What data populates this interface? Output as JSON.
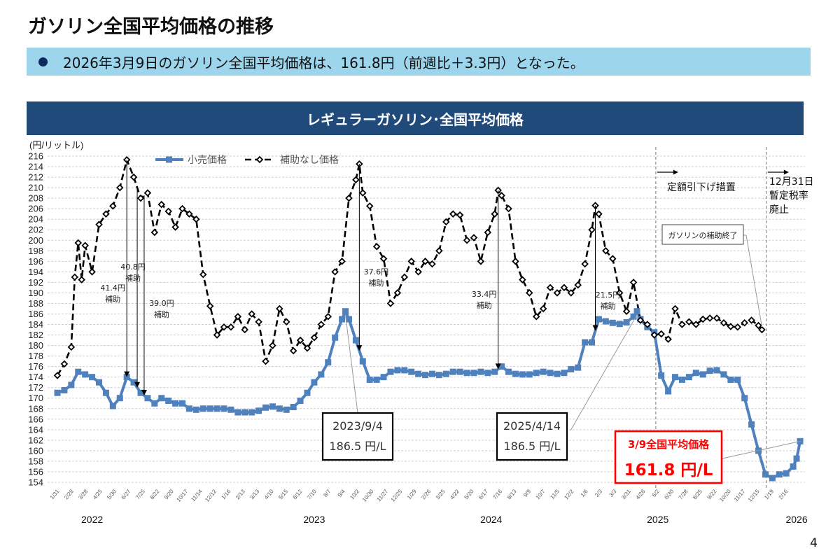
{
  "page": {
    "title": "ガソリン全国平均価格の推移",
    "summary": "2026年3月9日のガソリン全国平均価格は、161.8円（前週比＋3.3円）となった。",
    "chart_header": "レギュラーガソリン･全国平均価格",
    "page_number": "4"
  },
  "colors": {
    "banner": "#9DD6EC",
    "header": "#204A7A",
    "retail": "#4F81BD",
    "no_subsidy": "#000000",
    "highlight": "#FF0000"
  },
  "chart_data": {
    "type": "line",
    "ylabel": "(円/リットル)",
    "ylim": [
      154,
      216
    ],
    "y_ticks": [
      154,
      156,
      158,
      160,
      162,
      164,
      166,
      168,
      170,
      172,
      174,
      176,
      178,
      180,
      182,
      184,
      186,
      188,
      190,
      192,
      194,
      196,
      198,
      200,
      202,
      204,
      206,
      208,
      210,
      212,
      214,
      216
    ],
    "grid": true,
    "legend_position": "top",
    "x_tick_labels": [
      "1/31",
      "2/28",
      "3/28",
      "4/25",
      "5/30",
      "6/27",
      "7/25",
      "8/22",
      "9/20",
      "10/17",
      "11/14",
      "12/12",
      "1/16",
      "2/13",
      "3/13",
      "4/10",
      "5/15",
      "6/12",
      "7/10",
      "8/7",
      "9/4",
      "10/2",
      "10/30",
      "11/27",
      "12/25",
      "1/29",
      "2/26",
      "3/25",
      "4/22",
      "5/20",
      "6/17",
      "7/16",
      "8/13",
      "9/9",
      "10/7",
      "11/5",
      "12/2",
      "1/6",
      "2/3",
      "3/3",
      "3/31",
      "4/28",
      "6/2",
      "6/30",
      "7/28",
      "8/25",
      "9/22",
      "10/20",
      "11/17",
      "12/15",
      "1/19",
      "2/16"
    ],
    "year_labels": [
      {
        "label": "2022",
        "date": "2022-04-11"
      },
      {
        "label": "2023",
        "date": "2023-07-03"
      },
      {
        "label": "2024",
        "date": "2024-06-24"
      },
      {
        "label": "2025",
        "date": "2025-05-26"
      },
      {
        "label": "2026",
        "date": "2026-03-02"
      }
    ],
    "series": [
      {
        "name": "小売価格",
        "x": [
          "2022-01-31",
          "2022-02-14",
          "2022-02-28",
          "2022-03-14",
          "2022-03-28",
          "2022-04-11",
          "2022-04-25",
          "2022-05-09",
          "2022-05-23",
          "2022-06-06",
          "2022-06-20",
          "2022-07-04",
          "2022-07-18",
          "2022-08-01",
          "2022-08-15",
          "2022-08-29",
          "2022-09-12",
          "2022-09-26",
          "2022-10-10",
          "2022-10-24",
          "2022-11-07",
          "2022-11-21",
          "2022-12-05",
          "2022-12-19",
          "2023-01-02",
          "2023-01-16",
          "2023-01-30",
          "2023-02-13",
          "2023-02-27",
          "2023-03-13",
          "2023-03-27",
          "2023-04-10",
          "2023-04-24",
          "2023-05-08",
          "2023-05-22",
          "2023-06-05",
          "2023-06-19",
          "2023-07-03",
          "2023-07-17",
          "2023-07-31",
          "2023-08-14",
          "2023-08-28",
          "2023-09-04",
          "2023-09-11",
          "2023-09-25",
          "2023-10-09",
          "2023-10-23",
          "2023-11-06",
          "2023-11-20",
          "2023-12-04",
          "2023-12-18",
          "2024-01-01",
          "2024-01-15",
          "2024-01-29",
          "2024-02-12",
          "2024-02-26",
          "2024-03-11",
          "2024-03-25",
          "2024-04-08",
          "2024-04-22",
          "2024-05-06",
          "2024-05-20",
          "2024-06-03",
          "2024-06-17",
          "2024-07-01",
          "2024-07-15",
          "2024-07-29",
          "2024-08-12",
          "2024-08-26",
          "2024-09-09",
          "2024-09-23",
          "2024-10-07",
          "2024-10-21",
          "2024-11-04",
          "2024-11-18",
          "2024-12-02",
          "2024-12-16",
          "2024-12-30",
          "2025-01-13",
          "2025-01-27",
          "2025-02-10",
          "2025-02-24",
          "2025-03-10",
          "2025-03-24",
          "2025-04-07",
          "2025-04-14",
          "2025-04-21",
          "2025-05-05",
          "2025-05-19",
          "2025-06-02",
          "2025-06-16",
          "2025-06-30",
          "2025-07-14",
          "2025-07-28",
          "2025-08-11",
          "2025-08-25",
          "2025-09-08",
          "2025-09-22",
          "2025-10-06",
          "2025-10-20",
          "2025-11-03",
          "2025-11-17",
          "2025-12-01",
          "2025-12-15",
          "2025-12-29",
          "2026-01-12",
          "2026-01-26",
          "2026-02-09",
          "2026-02-23",
          "2026-03-02",
          "2026-03-09"
        ],
        "y": [
          171,
          171.5,
          172.5,
          175,
          174.5,
          174,
          173,
          171,
          168.5,
          170,
          174,
          173,
          171,
          170,
          169,
          170,
          169.5,
          169,
          169,
          168,
          167.8,
          168,
          168,
          168,
          168,
          167.8,
          167.3,
          167.3,
          167.3,
          167.6,
          168.2,
          168.4,
          168,
          167.8,
          168.3,
          169.5,
          171,
          173,
          174.5,
          176.8,
          181.5,
          185,
          186.5,
          185,
          181,
          177,
          173.5,
          173.5,
          174,
          175,
          175.3,
          175.3,
          175,
          174.6,
          174.4,
          174.6,
          174.4,
          174.6,
          175,
          175,
          174.8,
          174.8,
          175,
          174.8,
          175,
          176,
          175,
          174.6,
          174.5,
          174.5,
          174.8,
          175,
          174.8,
          174.6,
          174.8,
          175.5,
          175.8,
          180.6,
          180.6,
          185,
          184.6,
          184.3,
          184.1,
          184.4,
          185.5,
          186.5,
          185,
          183.5,
          182.5,
          174.3,
          171.3,
          174,
          173.5,
          174,
          174.8,
          174.5,
          175.2,
          175.3,
          174.5,
          173.5,
          173.5,
          170,
          165,
          160,
          155.5,
          154.8,
          155.5,
          155.7,
          157,
          158.5,
          161.8
        ]
      },
      {
        "name": "補助なし価格",
        "x": [
          "2022-01-31",
          "2022-02-14",
          "2022-02-28",
          "2022-03-07",
          "2022-03-14",
          "2022-03-21",
          "2022-03-28",
          "2022-04-11",
          "2022-04-25",
          "2022-05-09",
          "2022-05-23",
          "2022-06-06",
          "2022-06-20",
          "2022-07-04",
          "2022-07-18",
          "2022-08-01",
          "2022-08-15",
          "2022-08-29",
          "2022-09-12",
          "2022-09-26",
          "2022-10-10",
          "2022-10-24",
          "2022-11-07",
          "2022-11-21",
          "2022-12-05",
          "2022-12-19",
          "2023-01-02",
          "2023-01-16",
          "2023-01-30",
          "2023-02-13",
          "2023-02-27",
          "2023-03-13",
          "2023-03-27",
          "2023-04-10",
          "2023-04-24",
          "2023-05-08",
          "2023-05-22",
          "2023-06-05",
          "2023-06-19",
          "2023-07-03",
          "2023-07-17",
          "2023-07-31",
          "2023-08-14",
          "2023-08-28",
          "2023-09-11",
          "2023-09-25",
          "2023-10-02",
          "2023-10-09",
          "2023-10-23",
          "2023-11-06",
          "2023-11-20",
          "2023-12-04",
          "2023-12-18",
          "2024-01-01",
          "2024-01-15",
          "2024-01-29",
          "2024-02-12",
          "2024-02-26",
          "2024-03-11",
          "2024-03-25",
          "2024-04-08",
          "2024-04-22",
          "2024-05-06",
          "2024-05-20",
          "2024-06-03",
          "2024-06-17",
          "2024-07-01",
          "2024-07-08",
          "2024-07-15",
          "2024-07-29",
          "2024-08-12",
          "2024-08-26",
          "2024-09-09",
          "2024-09-23",
          "2024-10-07",
          "2024-10-21",
          "2024-11-04",
          "2024-11-18",
          "2024-12-02",
          "2024-12-16",
          "2024-12-30",
          "2025-01-13",
          "2025-01-20",
          "2025-01-27",
          "2025-02-10",
          "2025-02-24",
          "2025-03-10",
          "2025-03-24",
          "2025-04-07",
          "2025-04-21",
          "2025-05-05",
          "2025-05-19",
          "2025-06-02",
          "2025-06-16",
          "2025-06-30",
          "2025-07-14",
          "2025-07-28",
          "2025-08-11",
          "2025-08-25",
          "2025-09-08",
          "2025-09-22",
          "2025-10-06",
          "2025-10-20",
          "2025-11-03",
          "2025-11-17",
          "2025-12-01",
          "2025-12-15",
          "2025-12-22"
        ],
        "y": [
          174.3,
          176.5,
          179.7,
          193,
          199.5,
          192.5,
          199,
          194,
          203,
          205,
          206.5,
          210,
          215.3,
          212,
          208,
          209,
          201.5,
          206.8,
          205.5,
          202.5,
          206,
          205,
          204,
          193.5,
          187.5,
          182,
          183.5,
          183.5,
          185.5,
          183,
          186,
          184.5,
          177,
          180,
          187,
          184.5,
          179,
          181,
          179.5,
          181.5,
          184,
          185.5,
          194,
          196,
          208,
          211.5,
          214.5,
          209,
          206.5,
          198.8,
          196.5,
          188,
          190,
          193,
          196,
          194,
          196,
          195.5,
          198,
          203.5,
          205,
          204.8,
          200,
          200.5,
          196,
          201.5,
          205,
          209.5,
          208.5,
          206,
          196,
          192.5,
          190,
          185.5,
          187,
          191,
          190,
          191,
          190,
          191.5,
          195.5,
          202,
          206.6,
          205,
          198,
          196.5,
          190,
          186.5,
          192,
          184.8,
          184,
          182,
          182.2,
          181.2,
          187,
          184,
          184.5,
          184,
          185,
          185.2,
          185.2,
          184.3,
          183.6,
          183.5,
          184.3,
          184.8,
          183.8,
          183
        ]
      }
    ],
    "subsidy_annotations": [
      {
        "date": "2022-06-20",
        "label": "41.4円",
        "sub": "補助"
      },
      {
        "date": "2022-07-11",
        "label": "40.8円",
        "sub": "補助"
      },
      {
        "date": "2022-07-25",
        "label": "39.0円",
        "sub": "補助"
      },
      {
        "date": "2023-10-02",
        "label": "37.6円",
        "sub": "補助"
      },
      {
        "date": "2024-07-08",
        "label": "33.4円",
        "sub": "補助"
      },
      {
        "date": "2025-01-20",
        "label": "21.5円",
        "sub": "補助"
      }
    ],
    "callouts": [
      {
        "date": "2023-09-04",
        "line1": "2023/9/4",
        "line2": "186.5 円/L"
      },
      {
        "date": "2025-04-14",
        "line1": "2025/4/14",
        "line2": "186.5 円/L"
      }
    ],
    "highlight": {
      "date": "2026-03-09",
      "line1": "3/9全国平均価格",
      "line2": "161.8 円/L"
    },
    "events": [
      {
        "date": "2025-05-22",
        "label": "定額引下げ措置"
      },
      {
        "date": "2025-12-31",
        "label": "12月31日\n暫定税率\n廃止"
      }
    ],
    "subsidy_end": {
      "date": "2025-12-22",
      "label": "ガソリンの補助終了"
    }
  }
}
